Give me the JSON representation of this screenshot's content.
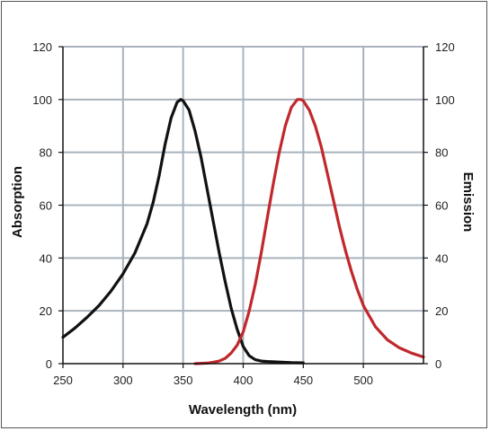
{
  "chart_data": {
    "type": "line",
    "title": "",
    "xlabel": "Wavelength (nm)",
    "ylabel_left": "Absorption",
    "ylabel_right": "Emission",
    "xlim": [
      250,
      550
    ],
    "ylim": [
      0,
      120
    ],
    "x_ticks": [
      250,
      300,
      350,
      400,
      450,
      500
    ],
    "y_ticks": [
      0,
      20,
      40,
      60,
      80,
      100,
      120
    ],
    "grid": true,
    "colors": {
      "grid": "#a9b3bd",
      "axis": "#111111",
      "absorption": "#111111",
      "emission": "#c0282d"
    },
    "series": [
      {
        "name": "Absorption",
        "axis": "left",
        "color": "#111111",
        "x": [
          250,
          260,
          270,
          280,
          290,
          300,
          310,
          320,
          325,
          330,
          335,
          340,
          345,
          348,
          350,
          355,
          360,
          365,
          370,
          375,
          380,
          385,
          390,
          395,
          400,
          405,
          410,
          415,
          420,
          430,
          440,
          450
        ],
        "y": [
          10,
          13.5,
          17.5,
          22,
          27.5,
          34,
          42,
          53,
          61,
          71,
          83,
          93,
          99,
          100,
          99.5,
          96,
          88,
          78,
          66,
          54,
          42,
          31,
          21,
          13,
          6.5,
          3,
          1.5,
          1,
          0.8,
          0.6,
          0.4,
          0.3
        ]
      },
      {
        "name": "Emission",
        "axis": "right",
        "color": "#c0282d",
        "x": [
          360,
          370,
          375,
          380,
          385,
          390,
          395,
          400,
          405,
          410,
          415,
          420,
          425,
          430,
          435,
          440,
          445,
          448,
          450,
          455,
          460,
          465,
          470,
          475,
          480,
          485,
          490,
          495,
          500,
          510,
          520,
          530,
          540,
          550
        ],
        "y": [
          0,
          0.2,
          0.5,
          1,
          2,
          4,
          7,
          12,
          20,
          30,
          42,
          55,
          68,
          80,
          90,
          97,
          100,
          100,
          99.5,
          96,
          90,
          82,
          72,
          62,
          52,
          43,
          35,
          28,
          22,
          14,
          9,
          6,
          4,
          2.5
        ]
      }
    ]
  }
}
